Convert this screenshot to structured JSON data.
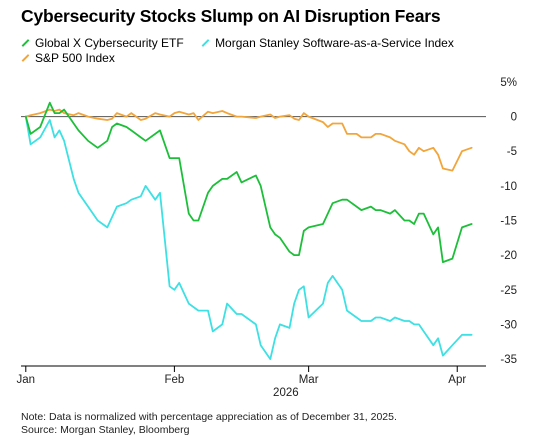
{
  "title": "Cybersecurity Stocks Slump on AI Disruption Fears",
  "legend": [
    {
      "name": "Global X Cybersecurity ETF",
      "color": "#1dbf3a"
    },
    {
      "name": "Morgan Stanley Software-as-a-Service Index",
      "color": "#3de0e3"
    },
    {
      "name": "S&P 500 Index",
      "color": "#f2a53a"
    }
  ],
  "notes": {
    "note": "Note: Data is normalized with percentage appreciation as of December 31, 2025.",
    "source": "Source: Morgan Stanley, Bloomberg"
  },
  "chart_data": {
    "type": "line",
    "x_unit": "days since Dec 31, 2025",
    "x_ticks": [
      {
        "x": 0,
        "label": "Jan"
      },
      {
        "x": 31,
        "label": "Feb"
      },
      {
        "x": 59,
        "label": "Mar"
      },
      {
        "x": 90,
        "label": "Apr"
      }
    ],
    "year_label": "2026",
    "xlim": [
      -1,
      96
    ],
    "y_ticks": [
      {
        "v": 5,
        "label": "5%"
      },
      {
        "v": 0,
        "label": "0"
      },
      {
        "v": -5,
        "label": "-5"
      },
      {
        "v": -10,
        "label": "-10"
      },
      {
        "v": -15,
        "label": "-15"
      },
      {
        "v": -20,
        "label": "-20"
      },
      {
        "v": -25,
        "label": "-25"
      },
      {
        "v": -30,
        "label": "-30"
      },
      {
        "v": -35,
        "label": "-35"
      }
    ],
    "ylim": [
      -36,
      6
    ],
    "zero_line": 0,
    "series": [
      {
        "name": "Global X Cybersecurity ETF",
        "color": "#1dbf3a",
        "x": [
          0,
          1,
          3,
          5,
          6,
          7,
          8,
          10,
          11,
          13,
          15,
          17,
          18,
          19,
          21,
          22,
          24,
          25,
          27,
          28,
          30,
          31,
          32,
          34,
          35,
          36,
          38,
          39,
          41,
          42,
          44,
          45,
          48,
          49,
          51,
          52,
          53,
          55,
          56,
          57,
          58,
          59,
          62,
          63,
          64,
          66,
          67,
          69,
          70,
          72,
          73,
          74,
          76,
          77,
          79,
          80,
          81,
          82,
          83,
          85,
          86,
          87,
          89,
          91,
          93
        ],
        "y": [
          0,
          -2.5,
          -1.5,
          2,
          0.5,
          0.5,
          1,
          -1,
          -2,
          -3.5,
          -4.5,
          -3.5,
          -1.5,
          -1,
          -1.5,
          -2,
          -3,
          -3.5,
          -2.5,
          -2,
          -6,
          -6,
          -6,
          -14,
          -15,
          -15,
          -11,
          -10,
          -9,
          -9,
          -8,
          -9.5,
          -8.5,
          -10,
          -16,
          -17,
          -17.5,
          -19.5,
          -20,
          -20,
          -16.5,
          -16,
          -15.5,
          -14,
          -12.5,
          -12,
          -12,
          -13,
          -13.5,
          -13,
          -13.5,
          -13.5,
          -14,
          -13.5,
          -15,
          -15,
          -15.5,
          -14,
          -14,
          -17,
          -16,
          -21,
          -20.5,
          -16,
          -15.5
        ]
      },
      {
        "name": "Morgan Stanley Software-as-a-Service Index",
        "color": "#3de0e3",
        "x": [
          0,
          1,
          3,
          5,
          6,
          7,
          8,
          10,
          11,
          13,
          15,
          17,
          18,
          19,
          21,
          22,
          24,
          25,
          27,
          28,
          30,
          31,
          32,
          34,
          35,
          36,
          38,
          39,
          41,
          42,
          44,
          45,
          48,
          49,
          51,
          52,
          53,
          55,
          56,
          57,
          58,
          59,
          62,
          63,
          64,
          66,
          67,
          69,
          70,
          72,
          73,
          74,
          76,
          77,
          79,
          80,
          81,
          82,
          83,
          85,
          86,
          87,
          89,
          91,
          93
        ],
        "y": [
          0,
          -4,
          -3,
          -0.5,
          -3,
          -2,
          -3.5,
          -9,
          -11,
          -13,
          -15,
          -16,
          -14.5,
          -13,
          -12.5,
          -12,
          -11.5,
          -10,
          -12,
          -11,
          -24.5,
          -25,
          -24,
          -27,
          -27.5,
          -28,
          -28,
          -31,
          -30,
          -27,
          -28.5,
          -28.5,
          -30,
          -33,
          -35,
          -32,
          -30,
          -30.5,
          -27,
          -25,
          -24.5,
          -29,
          -27,
          -24,
          -23,
          -25,
          -28,
          -29,
          -29.5,
          -29.5,
          -29,
          -29,
          -29.5,
          -29,
          -29.5,
          -29.5,
          -30,
          -30,
          -31,
          -33,
          -32,
          -34.5,
          -33,
          -31.5,
          -31.5
        ]
      },
      {
        "name": "S&P 500 Index",
        "color": "#f2a53a",
        "x": [
          0,
          1,
          3,
          5,
          6,
          7,
          8,
          10,
          11,
          13,
          15,
          17,
          18,
          19,
          21,
          22,
          24,
          25,
          27,
          28,
          30,
          31,
          32,
          34,
          35,
          36,
          38,
          39,
          41,
          42,
          44,
          45,
          48,
          49,
          51,
          52,
          53,
          55,
          56,
          57,
          58,
          59,
          62,
          63,
          64,
          66,
          67,
          69,
          70,
          72,
          73,
          74,
          76,
          77,
          79,
          80,
          81,
          82,
          83,
          85,
          86,
          87,
          89,
          91,
          93
        ],
        "y": [
          0,
          0.2,
          0.5,
          1,
          0.8,
          1,
          0.5,
          0.2,
          0.5,
          0,
          -0.3,
          -0.5,
          -0.3,
          0.5,
          0,
          0.5,
          -0.5,
          -0.3,
          0.5,
          0.3,
          0,
          0.5,
          0.7,
          0.3,
          0.5,
          -0.5,
          0.7,
          0.5,
          0.8,
          0.5,
          0,
          0,
          -0.2,
          0,
          0.3,
          -0.2,
          0,
          0.2,
          -0.3,
          -0.5,
          0.5,
          0,
          -0.8,
          -1.5,
          -1,
          -1,
          -2.5,
          -2.5,
          -3,
          -3,
          -2.5,
          -2.5,
          -3,
          -3.5,
          -4,
          -5,
          -5.5,
          -4.5,
          -5,
          -4.5,
          -5.5,
          -7.5,
          -7.8,
          -5,
          -4.5
        ]
      }
    ]
  }
}
